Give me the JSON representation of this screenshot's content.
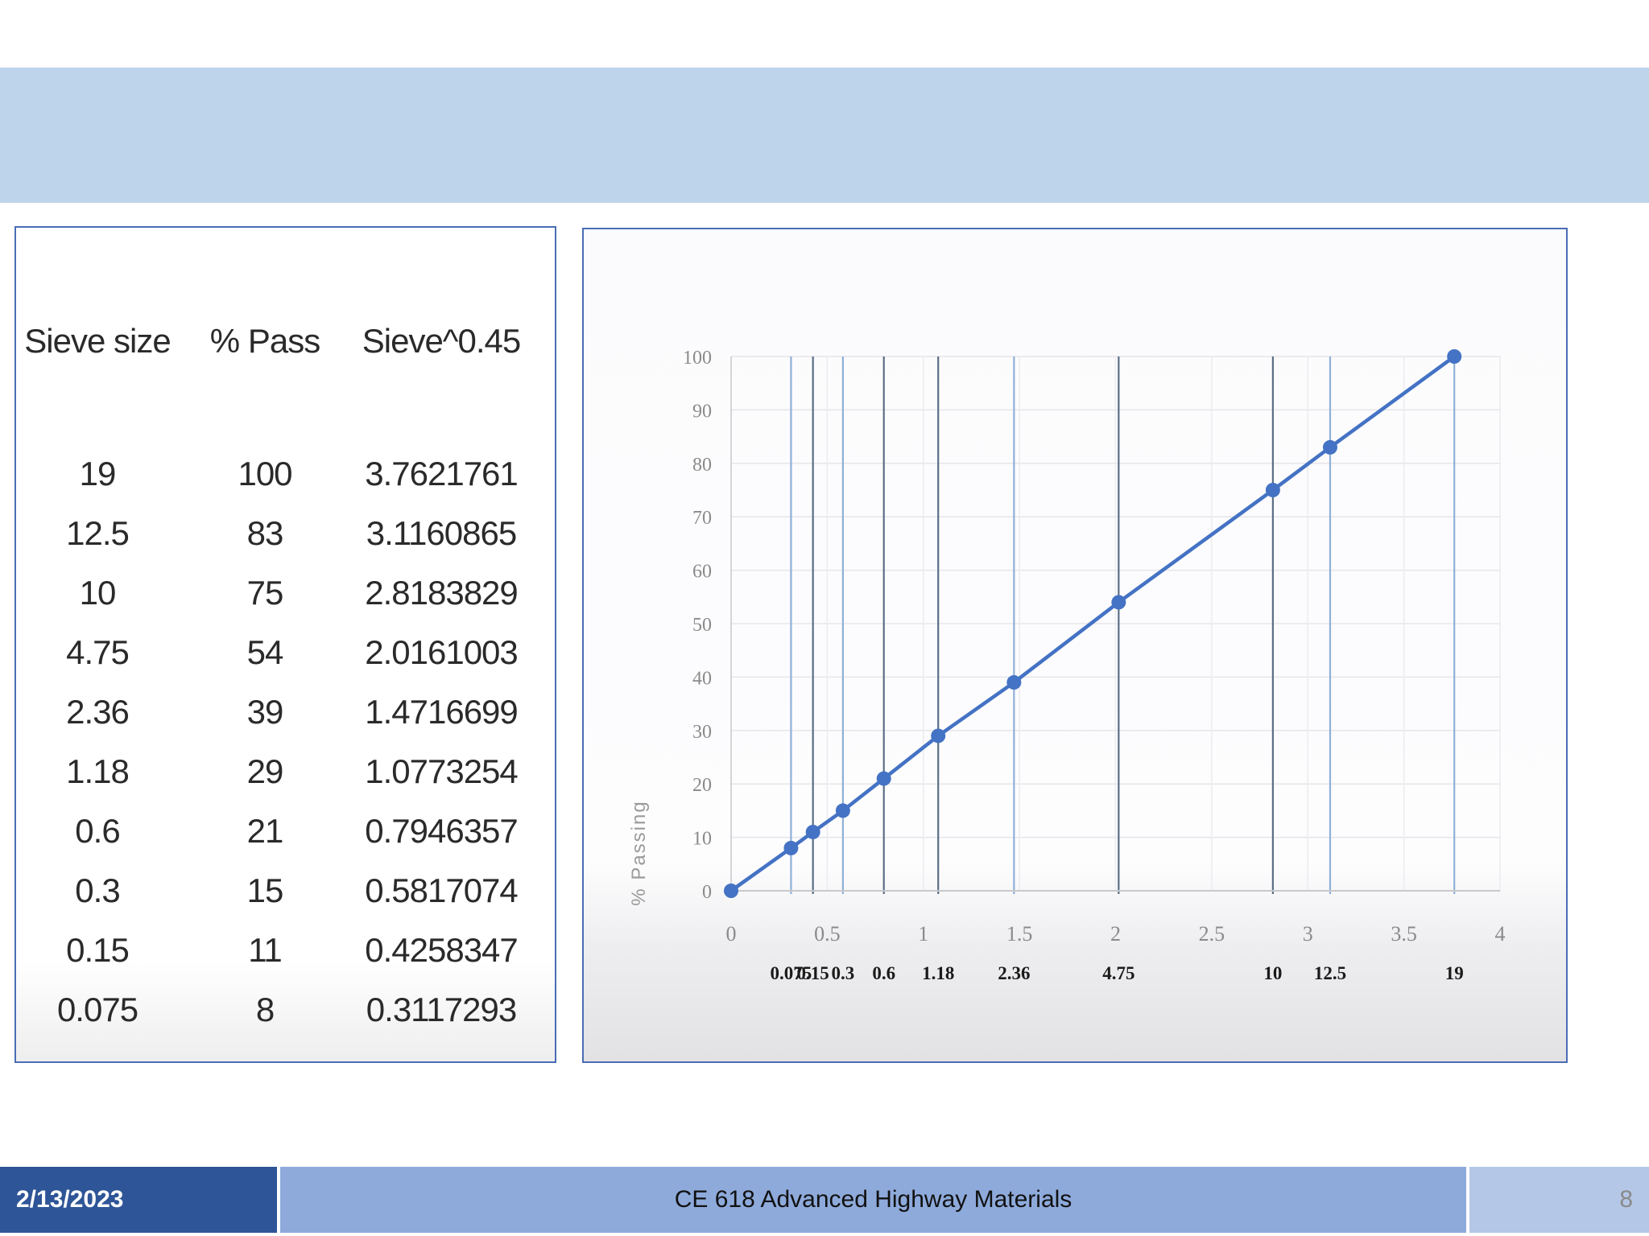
{
  "slide": {
    "date": "2/13/2023",
    "course": "CE 618 Advanced Highway Materials",
    "page_number": "8"
  },
  "table": {
    "headers": [
      "Sieve size",
      "% Pass",
      "Sieve^0.45"
    ],
    "rows": [
      [
        "19",
        "100",
        "3.7621761"
      ],
      [
        "12.5",
        "83",
        "3.1160865"
      ],
      [
        "10",
        "75",
        "2.8183829"
      ],
      [
        "4.75",
        "54",
        "2.0161003"
      ],
      [
        "2.36",
        "39",
        "1.4716699"
      ],
      [
        "1.18",
        "29",
        "1.0773254"
      ],
      [
        "0.6",
        "21",
        "0.7946357"
      ],
      [
        "0.3",
        "15",
        "0.5817074"
      ],
      [
        "0.15",
        "11",
        "0.4258347"
      ],
      [
        "0.075",
        "8",
        "0.3117293"
      ]
    ]
  },
  "chart_data": {
    "type": "line",
    "title": "",
    "xlabel": "",
    "ylabel": "% Passing",
    "xlim": [
      0,
      4
    ],
    "ylim": [
      0,
      100
    ],
    "xticks": [
      "0",
      "0.5",
      "1",
      "1.5",
      "2",
      "2.5",
      "3",
      "3.5",
      "4"
    ],
    "yticks": [
      "0",
      "10",
      "20",
      "30",
      "40",
      "50",
      "60",
      "70",
      "80",
      "90",
      "100"
    ],
    "grid": true,
    "series": [
      {
        "color": "#4472c4",
        "points": [
          {
            "x": 0,
            "y": 0
          },
          {
            "x": 0.3117293,
            "y": 8
          },
          {
            "x": 0.4258347,
            "y": 11
          },
          {
            "x": 0.5817074,
            "y": 15
          },
          {
            "x": 0.7946357,
            "y": 21
          },
          {
            "x": 1.0773254,
            "y": 29
          },
          {
            "x": 1.4716699,
            "y": 39
          },
          {
            "x": 2.0161003,
            "y": 54
          },
          {
            "x": 2.8183829,
            "y": 75
          },
          {
            "x": 3.1160865,
            "y": 83
          },
          {
            "x": 3.7621761,
            "y": 100
          }
        ]
      }
    ],
    "sieve_lines": [
      {
        "x": 0.3117293,
        "label": "0.075"
      },
      {
        "x": 0.4258347,
        "label": "0.15"
      },
      {
        "x": 0.5817074,
        "label": "0.3"
      },
      {
        "x": 0.7946357,
        "label": "0.6"
      },
      {
        "x": 1.0773254,
        "label": "1.18"
      },
      {
        "x": 1.4716699,
        "label": "2.36"
      },
      {
        "x": 2.0161003,
        "label": "4.75"
      },
      {
        "x": 2.8183829,
        "label": "10"
      },
      {
        "x": 3.1160865,
        "label": "12.5"
      },
      {
        "x": 3.7621761,
        "label": "19"
      }
    ]
  }
}
